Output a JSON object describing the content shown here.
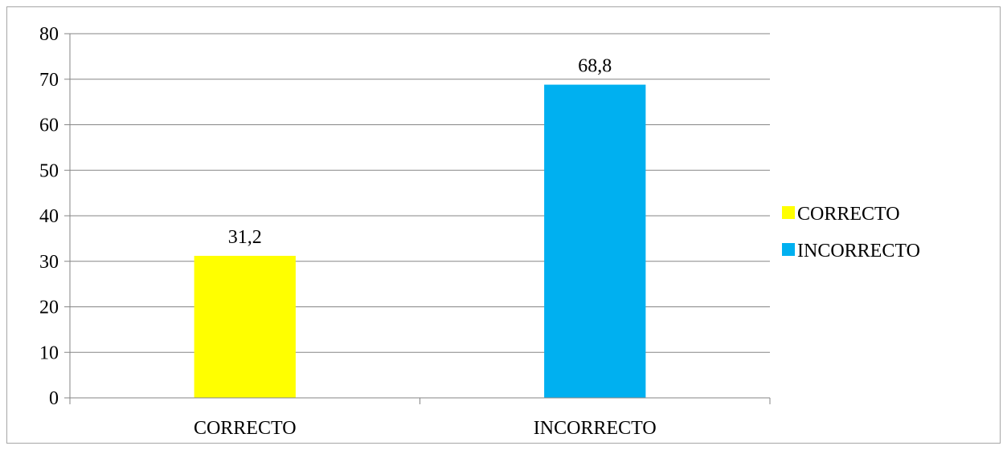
{
  "chart_data": {
    "type": "bar",
    "categories": [
      "CORRECTO",
      "INCORRECTO"
    ],
    "values": [
      31.2,
      68.8
    ],
    "data_labels": [
      "31,2",
      "68,8"
    ],
    "colors": [
      "#ffff00",
      "#00b0f0"
    ],
    "title": "",
    "xlabel": "",
    "ylabel": "",
    "ylim": [
      0,
      80
    ],
    "yticks": [
      0,
      10,
      20,
      30,
      40,
      50,
      60,
      70,
      80
    ],
    "grid": true,
    "legend": {
      "position": "right",
      "entries": [
        "CORRECTO",
        "INCORRECTO"
      ]
    }
  }
}
